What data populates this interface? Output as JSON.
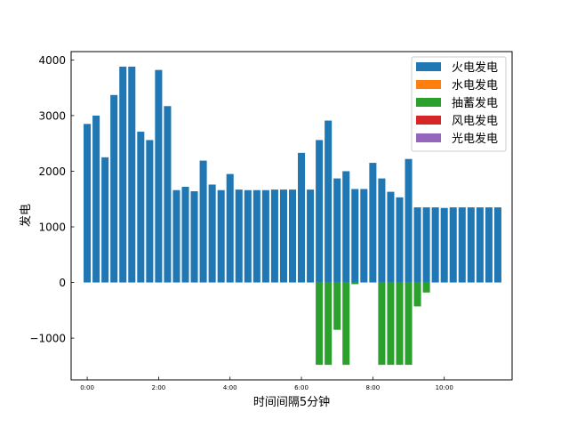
{
  "chart_data": {
    "type": "bar",
    "xlabel": "时间间隔5分钟",
    "ylabel": "发电",
    "ylim": [
      -1750,
      4150
    ],
    "xlim": [
      -0.45,
      11.9
    ],
    "x_ticks": [
      {
        "value": 0,
        "label": "0:00"
      },
      {
        "value": 2,
        "label": "2:00"
      },
      {
        "value": 4,
        "label": "4:00"
      },
      {
        "value": 6,
        "label": "6:00"
      },
      {
        "value": 8,
        "label": "8:00"
      },
      {
        "value": 10,
        "label": "10:00"
      }
    ],
    "y_ticks": [
      {
        "value": -1000,
        "label": "−1000"
      },
      {
        "value": 0,
        "label": "0"
      },
      {
        "value": 1000,
        "label": "1000"
      },
      {
        "value": 2000,
        "label": "2000"
      },
      {
        "value": 3000,
        "label": "3000"
      },
      {
        "value": 4000,
        "label": "4000"
      }
    ],
    "x_step_hours": 0.25,
    "legend_position": "top-right",
    "grid": false,
    "series": [
      {
        "name": "火电发电",
        "color": "#1f77b4",
        "values": [
          2850,
          3000,
          2250,
          3370,
          3880,
          3880,
          2710,
          2560,
          3820,
          3170,
          1660,
          1720,
          1640,
          2190,
          1760,
          1660,
          1950,
          1670,
          1660,
          1660,
          1660,
          1670,
          1670,
          1670,
          2330,
          1670,
          2560,
          2910,
          1870,
          2000,
          1680,
          1680,
          2150,
          1870,
          1630,
          1530,
          2220,
          1350,
          1350,
          1350,
          1340,
          1350,
          1350,
          1350,
          1350,
          1350,
          1350
        ]
      },
      {
        "name": "水电发电",
        "color": "#ff7f0e",
        "values": [
          0,
          0,
          0,
          0,
          0,
          0,
          0,
          0,
          0,
          0,
          0,
          0,
          0,
          0,
          0,
          0,
          0,
          0,
          0,
          0,
          0,
          0,
          0,
          0,
          0,
          0,
          0,
          0,
          0,
          0,
          0,
          0,
          0,
          0,
          0,
          0,
          0,
          0,
          0,
          0,
          0,
          0,
          0,
          0,
          0,
          0,
          0
        ]
      },
      {
        "name": "抽蓄发电",
        "color": "#2ca02c",
        "values": [
          0,
          0,
          0,
          0,
          0,
          0,
          0,
          0,
          0,
          0,
          0,
          0,
          0,
          0,
          0,
          0,
          0,
          0,
          0,
          0,
          0,
          0,
          0,
          0,
          0,
          0,
          -1480,
          -1480,
          -850,
          -1480,
          -30,
          0,
          0,
          -1480,
          -1480,
          -1480,
          -1480,
          -430,
          -180,
          0,
          0,
          0,
          0,
          0,
          0,
          0,
          0
        ]
      },
      {
        "name": "风电发电",
        "color": "#d62728",
        "values": []
      },
      {
        "name": "光电发电",
        "color": "#9467bd",
        "values": []
      }
    ]
  }
}
